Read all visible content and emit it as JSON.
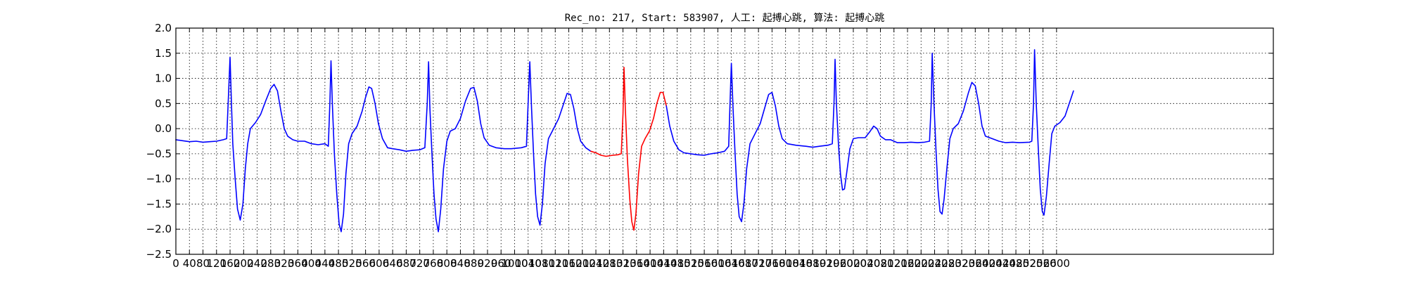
{
  "chart_data": {
    "type": "line",
    "title": "Rec_no: 217, Start: 583907, 人工: 起搏心跳, 算法: 起搏心跳",
    "xlabel": "",
    "ylabel": "",
    "xlim": [
      0,
      3240
    ],
    "ylim": [
      -2.5,
      2.0
    ],
    "grid": true,
    "grid_style": "dotted",
    "x_ticks": [
      0,
      40,
      80,
      120,
      160,
      200,
      240,
      280,
      320,
      360,
      400,
      440,
      480,
      520,
      560,
      600,
      640,
      680,
      720,
      760,
      800,
      840,
      880,
      920,
      960,
      1000,
      1040,
      1080,
      1120,
      1160,
      1200,
      1240,
      1280,
      1320,
      1360,
      1400,
      1440,
      1480,
      1520,
      1560,
      1600,
      1640,
      1680,
      1720,
      1760,
      1800,
      1840,
      1880,
      1920,
      1960,
      2000,
      2040,
      2080,
      2120,
      2160,
      2200,
      2240,
      2280,
      2320,
      2360,
      2400,
      2440,
      2480,
      2520,
      2560,
      2600
    ],
    "y_ticks": [
      -2.5,
      -2.0,
      -1.5,
      -1.0,
      -0.5,
      0.0,
      0.5,
      1.0,
      1.5,
      2.0
    ],
    "y_tick_labels": [
      "−2.5",
      "−2.0",
      "−1.5",
      "−1.0",
      "−0.5",
      "0.0",
      "0.5",
      "1.0",
      "1.5",
      "2.0"
    ],
    "series": [
      {
        "color": "#0000ff",
        "points": [
          [
            0,
            -0.22
          ],
          [
            20,
            -0.24
          ],
          [
            40,
            -0.26
          ],
          [
            60,
            -0.25
          ],
          [
            80,
            -0.27
          ],
          [
            100,
            -0.26
          ],
          [
            120,
            -0.25
          ],
          [
            140,
            -0.22
          ],
          [
            150,
            -0.2
          ],
          [
            155,
            0.6
          ],
          [
            160,
            1.42
          ],
          [
            164,
            0.5
          ],
          [
            168,
            -0.3
          ],
          [
            175,
            -1.0
          ],
          [
            182,
            -1.6
          ],
          [
            190,
            -1.82
          ],
          [
            198,
            -1.5
          ],
          [
            205,
            -0.8
          ],
          [
            212,
            -0.3
          ],
          [
            220,
            0.0
          ],
          [
            235,
            0.12
          ],
          [
            250,
            0.28
          ],
          [
            265,
            0.55
          ],
          [
            280,
            0.8
          ],
          [
            290,
            0.88
          ],
          [
            300,
            0.75
          ],
          [
            310,
            0.35
          ],
          [
            320,
            0.0
          ],
          [
            330,
            -0.15
          ],
          [
            345,
            -0.22
          ],
          [
            360,
            -0.25
          ],
          [
            380,
            -0.25
          ],
          [
            400,
            -0.3
          ],
          [
            420,
            -0.32
          ],
          [
            440,
            -0.3
          ],
          [
            450,
            -0.35
          ],
          [
            455,
            0.6
          ],
          [
            458,
            1.35
          ],
          [
            462,
            0.5
          ],
          [
            468,
            -0.5
          ],
          [
            475,
            -1.3
          ],
          [
            482,
            -1.9
          ],
          [
            488,
            -2.05
          ],
          [
            495,
            -1.7
          ],
          [
            502,
            -0.9
          ],
          [
            510,
            -0.3
          ],
          [
            520,
            -0.1
          ],
          [
            535,
            0.05
          ],
          [
            550,
            0.35
          ],
          [
            560,
            0.62
          ],
          [
            570,
            0.83
          ],
          [
            578,
            0.8
          ],
          [
            588,
            0.5
          ],
          [
            598,
            0.1
          ],
          [
            610,
            -0.2
          ],
          [
            625,
            -0.38
          ],
          [
            640,
            -0.4
          ],
          [
            660,
            -0.42
          ],
          [
            680,
            -0.45
          ],
          [
            700,
            -0.43
          ],
          [
            720,
            -0.42
          ],
          [
            735,
            -0.38
          ],
          [
            742,
            0.5
          ],
          [
            746,
            1.33
          ],
          [
            750,
            0.4
          ],
          [
            756,
            -0.5
          ],
          [
            762,
            -1.3
          ],
          [
            768,
            -1.8
          ],
          [
            775,
            -2.05
          ],
          [
            782,
            -1.6
          ],
          [
            790,
            -0.8
          ],
          [
            800,
            -0.25
          ],
          [
            810,
            -0.05
          ],
          [
            825,
            0.0
          ],
          [
            840,
            0.2
          ],
          [
            855,
            0.55
          ],
          [
            870,
            0.8
          ],
          [
            880,
            0.82
          ],
          [
            890,
            0.55
          ],
          [
            900,
            0.1
          ],
          [
            910,
            -0.18
          ],
          [
            925,
            -0.33
          ],
          [
            945,
            -0.38
          ],
          [
            970,
            -0.4
          ],
          [
            990,
            -0.4
          ],
          [
            1020,
            -0.38
          ],
          [
            1035,
            -0.35
          ],
          [
            1040,
            0.5
          ],
          [
            1045,
            1.33
          ],
          [
            1050,
            0.4
          ],
          [
            1056,
            -0.5
          ],
          [
            1062,
            -1.3
          ],
          [
            1068,
            -1.75
          ],
          [
            1075,
            -1.92
          ],
          [
            1082,
            -1.5
          ],
          [
            1090,
            -0.7
          ],
          [
            1100,
            -0.2
          ],
          [
            1115,
            0.0
          ],
          [
            1130,
            0.2
          ],
          [
            1145,
            0.5
          ],
          [
            1155,
            0.7
          ],
          [
            1165,
            0.68
          ],
          [
            1175,
            0.4
          ],
          [
            1185,
            0.0
          ],
          [
            1195,
            -0.25
          ],
          [
            1210,
            -0.38
          ],
          [
            1225,
            -0.45
          ]
        ]
      },
      {
        "color": "#ff0000",
        "points": [
          [
            1225,
            -0.45
          ],
          [
            1240,
            -0.48
          ],
          [
            1255,
            -0.53
          ],
          [
            1270,
            -0.55
          ],
          [
            1290,
            -0.53
          ],
          [
            1305,
            -0.52
          ],
          [
            1315,
            -0.5
          ],
          [
            1320,
            0.3
          ],
          [
            1323,
            1.22
          ],
          [
            1327,
            0.4
          ],
          [
            1333,
            -0.6
          ],
          [
            1340,
            -1.4
          ],
          [
            1346,
            -1.85
          ],
          [
            1352,
            -2.02
          ],
          [
            1358,
            -1.7
          ],
          [
            1366,
            -0.9
          ],
          [
            1375,
            -0.35
          ],
          [
            1385,
            -0.2
          ],
          [
            1398,
            -0.05
          ],
          [
            1410,
            0.2
          ],
          [
            1420,
            0.5
          ],
          [
            1430,
            0.72
          ],
          [
            1438,
            0.72
          ],
          [
            1448,
            0.45
          ]
        ]
      },
      {
        "color": "#0000ff",
        "points": [
          [
            1448,
            0.45
          ],
          [
            1458,
            0.05
          ],
          [
            1470,
            -0.25
          ],
          [
            1485,
            -0.42
          ],
          [
            1500,
            -0.48
          ],
          [
            1520,
            -0.5
          ],
          [
            1540,
            -0.52
          ],
          [
            1560,
            -0.53
          ],
          [
            1580,
            -0.5
          ],
          [
            1600,
            -0.48
          ],
          [
            1620,
            -0.45
          ],
          [
            1632,
            -0.35
          ],
          [
            1636,
            0.5
          ],
          [
            1640,
            1.3
          ],
          [
            1645,
            0.4
          ],
          [
            1651,
            -0.5
          ],
          [
            1657,
            -1.3
          ],
          [
            1663,
            -1.75
          ],
          [
            1670,
            -1.85
          ],
          [
            1677,
            -1.5
          ],
          [
            1685,
            -0.8
          ],
          [
            1695,
            -0.3
          ],
          [
            1710,
            -0.1
          ],
          [
            1725,
            0.1
          ],
          [
            1740,
            0.45
          ],
          [
            1750,
            0.68
          ],
          [
            1760,
            0.72
          ],
          [
            1770,
            0.45
          ],
          [
            1780,
            0.05
          ],
          [
            1790,
            -0.2
          ],
          [
            1805,
            -0.3
          ],
          [
            1830,
            -0.33
          ],
          [
            1860,
            -0.35
          ],
          [
            1880,
            -0.37
          ],
          [
            1900,
            -0.35
          ],
          [
            1925,
            -0.33
          ],
          [
            1938,
            -0.3
          ],
          [
            1943,
            0.5
          ],
          [
            1946,
            1.38
          ],
          [
            1950,
            0.5
          ],
          [
            1956,
            -0.3
          ],
          [
            1962,
            -0.9
          ],
          [
            1968,
            -1.22
          ],
          [
            1974,
            -1.2
          ],
          [
            1982,
            -0.8
          ],
          [
            1990,
            -0.4
          ],
          [
            2000,
            -0.2
          ],
          [
            2015,
            -0.18
          ],
          [
            2035,
            -0.18
          ],
          [
            2050,
            -0.05
          ],
          [
            2060,
            0.05
          ],
          [
            2070,
            0.0
          ],
          [
            2080,
            -0.15
          ],
          [
            2095,
            -0.22
          ],
          [
            2110,
            -0.22
          ],
          [
            2130,
            -0.28
          ],
          [
            2150,
            -0.28
          ],
          [
            2170,
            -0.27
          ],
          [
            2190,
            -0.28
          ],
          [
            2210,
            -0.27
          ],
          [
            2225,
            -0.25
          ],
          [
            2230,
            0.5
          ],
          [
            2233,
            1.5
          ],
          [
            2238,
            0.5
          ],
          [
            2244,
            -0.4
          ],
          [
            2250,
            -1.2
          ],
          [
            2256,
            -1.65
          ],
          [
            2262,
            -1.7
          ],
          [
            2268,
            -1.4
          ],
          [
            2276,
            -0.8
          ],
          [
            2285,
            -0.2
          ],
          [
            2295,
            0.0
          ],
          [
            2310,
            0.1
          ],
          [
            2325,
            0.35
          ],
          [
            2340,
            0.72
          ],
          [
            2350,
            0.92
          ],
          [
            2360,
            0.85
          ],
          [
            2370,
            0.5
          ],
          [
            2380,
            0.05
          ],
          [
            2390,
            -0.15
          ],
          [
            2410,
            -0.2
          ],
          [
            2430,
            -0.25
          ],
          [
            2450,
            -0.28
          ],
          [
            2470,
            -0.27
          ],
          [
            2490,
            -0.28
          ],
          [
            2520,
            -0.27
          ],
          [
            2527,
            -0.25
          ],
          [
            2532,
            0.5
          ],
          [
            2535,
            1.57
          ],
          [
            2540,
            0.5
          ],
          [
            2546,
            -0.4
          ],
          [
            2552,
            -1.2
          ],
          [
            2558,
            -1.65
          ],
          [
            2563,
            -1.72
          ],
          [
            2570,
            -1.35
          ],
          [
            2578,
            -0.7
          ],
          [
            2586,
            -0.1
          ],
          [
            2595,
            0.05
          ],
          [
            2610,
            0.12
          ],
          [
            2625,
            0.25
          ],
          [
            2640,
            0.55
          ],
          [
            2650,
            0.75
          ]
        ]
      }
    ]
  }
}
